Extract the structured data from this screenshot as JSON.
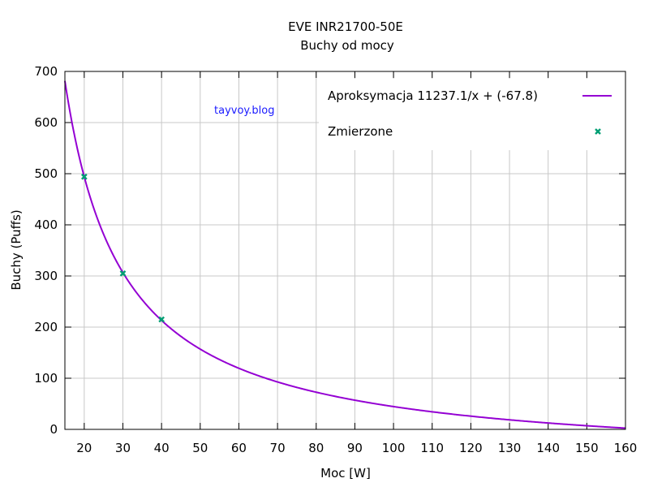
{
  "chart_data": {
    "type": "line",
    "title": "EVE INR21700-50E",
    "subtitle": "Buchy od mocy",
    "xlabel": "Moc [W]",
    "ylabel": "Buchy (Puffs)",
    "xlim": [
      15,
      160
    ],
    "ylim": [
      0,
      700
    ],
    "x_ticks": [
      20,
      30,
      40,
      50,
      60,
      70,
      80,
      90,
      100,
      110,
      120,
      130,
      140,
      150,
      160
    ],
    "y_ticks": [
      0,
      100,
      200,
      300,
      400,
      500,
      600,
      700
    ],
    "grid": true,
    "legend_position": "top-right",
    "series": [
      {
        "name": "Aproksymacja",
        "kind": "line",
        "color": "#9400d3",
        "formula": "11237.1/x + (-67.8)",
        "a": 11237.1,
        "b": -67.8
      },
      {
        "name": "Zmierzone",
        "kind": "scatter",
        "color": "#009e73",
        "marker": "x",
        "x": [
          20,
          30,
          40
        ],
        "y": [
          494,
          305,
          215
        ]
      }
    ],
    "annotation": "tayvoy.blog"
  }
}
